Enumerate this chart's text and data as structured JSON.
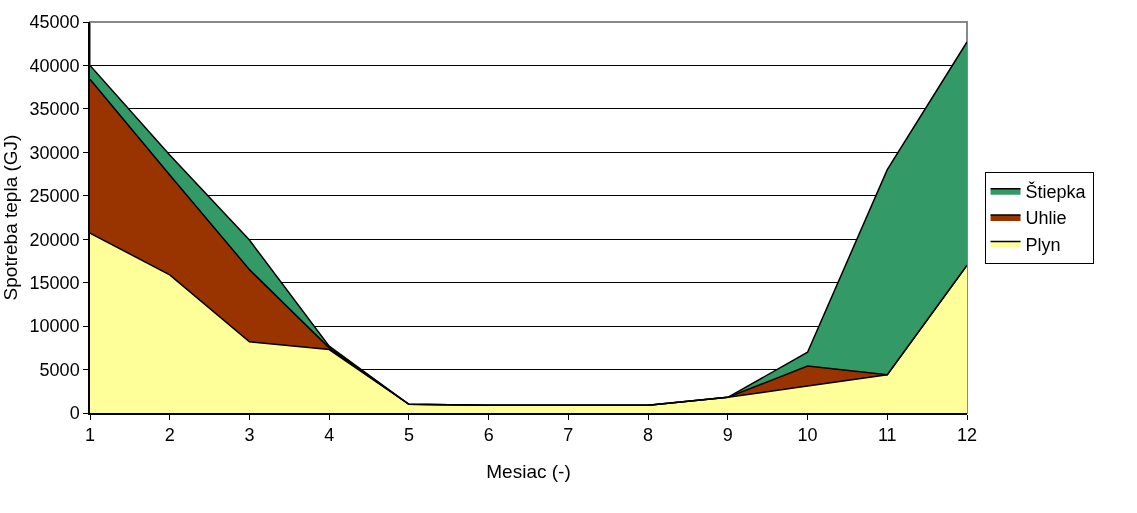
{
  "chart_data": {
    "type": "area",
    "stacked": true,
    "xlabel": "Mesiac (-)",
    "ylabel": "Spotreba tepla (GJ)",
    "x": [
      1,
      2,
      3,
      4,
      5,
      6,
      7,
      8,
      9,
      10,
      11,
      12
    ],
    "series": [
      {
        "name": "Plyn",
        "color": "#ffff99",
        "values": [
          20700,
          15900,
          8200,
          7300,
          1000,
          900,
          900,
          900,
          1800,
          3100,
          4400,
          17000
        ]
      },
      {
        "name": "Uhlie",
        "color": "#993300",
        "values": [
          17700,
          11500,
          8300,
          200,
          0,
          0,
          0,
          0,
          0,
          2300,
          0,
          0
        ]
      },
      {
        "name": "Štiepka",
        "color": "#339966",
        "values": [
          1600,
          2300,
          3400,
          200,
          0,
          0,
          0,
          0,
          0,
          1600,
          23600,
          25700
        ]
      }
    ],
    "xlim": [
      1,
      12
    ],
    "xticks": [
      1,
      2,
      3,
      4,
      5,
      6,
      7,
      8,
      9,
      10,
      11,
      12
    ],
    "ylim": [
      0,
      45000
    ],
    "yticks": [
      0,
      5000,
      10000,
      15000,
      20000,
      25000,
      30000,
      35000,
      40000,
      45000
    ],
    "grid": "y",
    "legend": "right",
    "marker": "none",
    "line_style": "solid"
  }
}
